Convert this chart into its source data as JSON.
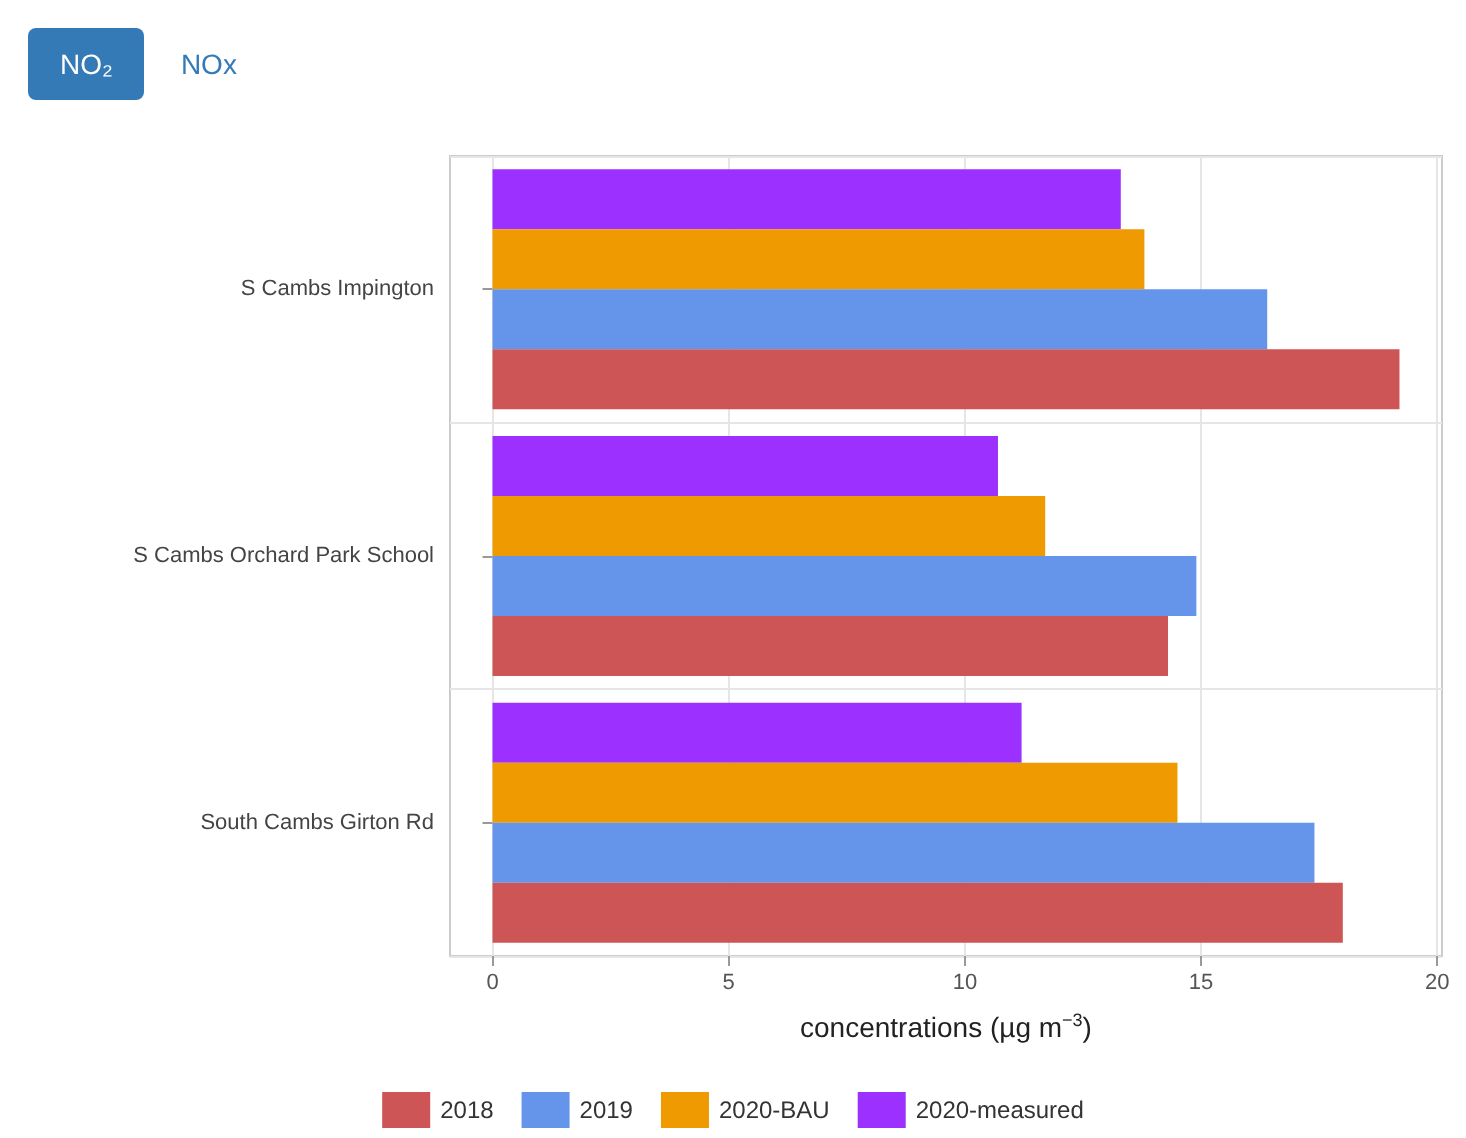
{
  "chart_data": {
    "type": "bar",
    "orientation": "horizontal",
    "xlabel": "concentrations (µg m$^{−3}$)",
    "annotations": [
      "NO₂",
      "NOx"
    ],
    "categories": [
      "S Cambs Impington",
      "S Cambs Orchard Park School",
      "South Cambs Girton Rd"
    ],
    "series": [
      {
        "name": "2018",
        "color": "#cd5555",
        "values": [
          19.2,
          14.3,
          18.0
        ]
      },
      {
        "name": "2019",
        "color": "#6495ea",
        "values": [
          16.4,
          14.9,
          17.4
        ]
      },
      {
        "name": "2020-BAU",
        "color": "#ee9a00",
        "values": [
          13.8,
          11.7,
          14.5
        ]
      },
      {
        "name": "2020-measured",
        "color": "#9b30ff",
        "values": [
          13.3,
          10.7,
          11.2
        ]
      }
    ],
    "xlim": [
      -0.9,
      20.1
    ],
    "xticks": [
      0,
      5,
      10,
      15,
      20
    ],
    "grid": true,
    "legend": "bottom"
  }
}
